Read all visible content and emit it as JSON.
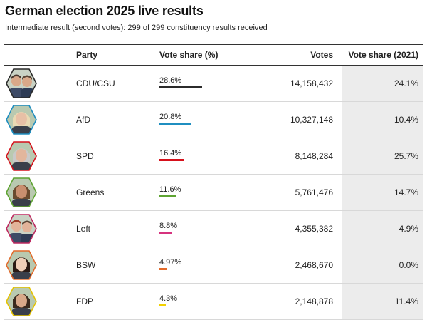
{
  "page": {
    "title": "German election 2025 live results",
    "subtitle": "Intermediate result (second votes): 299 of 299 constituency results received"
  },
  "table": {
    "headers": {
      "party": "Party",
      "vote_share": "Vote share (%)",
      "votes": "Votes",
      "vote_share_2021": "Vote share (2021)"
    },
    "rows": [
      {
        "party": "CDU/CSU",
        "share_label": "28.6%",
        "share": 28.6,
        "votes": "14,158,432",
        "share_2021": "24.1%",
        "color": "#2b2b2b",
        "ring": "#2b2b2b",
        "portrait": "two-men-portrait-icon",
        "skin": "#d9a889",
        "hair": "#4a3a30"
      },
      {
        "party": "AfD",
        "share_label": "20.8%",
        "share": 20.8,
        "votes": "10,327,148",
        "share_2021": "10.4%",
        "color": "#1f8ec0",
        "ring": "#1f8ec0",
        "portrait": "woman-portrait-icon",
        "skin": "#e7c0a6",
        "hair": "#e9d9b3"
      },
      {
        "party": "SPD",
        "share_label": "16.4%",
        "share": 16.4,
        "votes": "8,148,284",
        "share_2021": "25.7%",
        "color": "#d6111b",
        "ring": "#d6111b",
        "portrait": "man-portrait-icon",
        "skin": "#e2b69d",
        "hair": "#c9c9c9"
      },
      {
        "party": "Greens",
        "share_label": "11.6%",
        "share": 11.6,
        "votes": "5,761,476",
        "share_2021": "14.7%",
        "color": "#5ea432",
        "ring": "#5ea432",
        "portrait": "man-portrait-icon",
        "skin": "#c98f6f",
        "hair": "#6a4a2e"
      },
      {
        "party": "Left",
        "share_label": "8.8%",
        "share": 8.8,
        "votes": "4,355,382",
        "share_2021": "4.9%",
        "color": "#d6327e",
        "ring": "#be2960",
        "portrait": "two-people-portrait-icon",
        "skin": "#e2b399",
        "hair": "#9a3a25"
      },
      {
        "party": "BSW",
        "share_label": "4.97%",
        "share": 4.97,
        "votes": "2,468,670",
        "share_2021": "0.0%",
        "color": "#e36a2a",
        "ring": "#e36a2a",
        "portrait": "woman-portrait-icon",
        "skin": "#efcfb8",
        "hair": "#2a1a14"
      },
      {
        "party": "FDP",
        "share_label": "4.3%",
        "share": 4.3,
        "votes": "2,148,878",
        "share_2021": "11.4%",
        "color": "#f2d100",
        "ring": "#e4c200",
        "portrait": "man-portrait-icon",
        "skin": "#d8a98a",
        "hair": "#3a2a1e"
      }
    ]
  }
}
